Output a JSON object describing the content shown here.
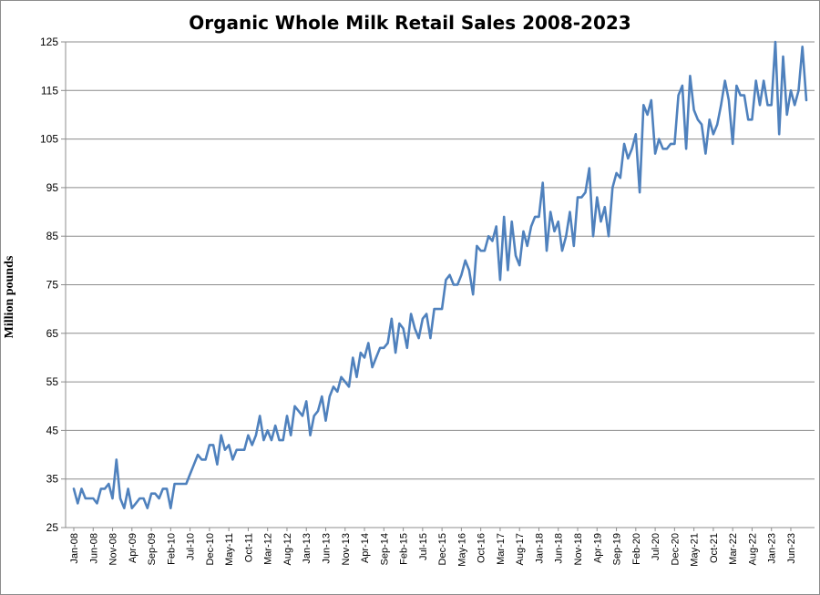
{
  "chart_data": {
    "type": "line",
    "title": "Organic Whole Milk Retail Sales 2008-2023",
    "xlabel": "",
    "ylabel": "Million pounds",
    "ylim": [
      25,
      125
    ],
    "y_ticks": [
      "25",
      "35",
      "45",
      "55",
      "65",
      "75",
      "85",
      "95",
      "105",
      "115",
      "125"
    ],
    "x_tick_labels": [
      "Jan-08",
      "Jun-08",
      "Nov-08",
      "Apr-09",
      "Sep-09",
      "Feb-10",
      "Jul-10",
      "Dec-10",
      "May-11",
      "Oct-11",
      "Mar-12",
      "Aug-12",
      "Jan-13",
      "Jun-13",
      "Nov-13",
      "Apr-14",
      "Sep-14",
      "Feb-15",
      "Jul-15",
      "Dec-15",
      "May-16",
      "Oct-16",
      "Mar-17",
      "Aug-17",
      "Jan-18",
      "Jun-18",
      "Nov-18",
      "Apr-19",
      "Sep-19",
      "Feb-20",
      "Jul-20",
      "Dec-20",
      "May-21",
      "Oct-21",
      "Mar-22",
      "Aug-22",
      "Jan-23",
      "Jun-23"
    ],
    "grid": true,
    "legend": "none",
    "color": "#4f81bd",
    "series": [
      {
        "values": [
          33,
          30,
          33,
          31,
          31,
          31,
          30,
          33,
          33,
          34,
          31,
          39,
          31,
          29,
          33,
          29,
          30,
          31,
          31,
          29,
          32,
          32,
          31,
          33,
          33,
          29,
          34,
          34,
          34,
          34,
          36,
          38,
          40,
          39,
          39,
          42,
          42,
          38,
          44,
          41,
          42,
          39,
          41,
          41,
          41,
          44,
          42,
          44,
          48,
          43,
          45,
          43,
          46,
          43,
          43,
          48,
          44,
          50,
          49,
          48,
          51,
          44,
          48,
          49,
          52,
          47,
          52,
          54,
          53,
          56,
          55,
          54,
          60,
          56,
          61,
          60,
          63,
          58,
          60,
          62,
          62,
          63,
          68,
          61,
          67,
          66,
          62,
          69,
          66,
          64,
          68,
          69,
          64,
          70,
          70,
          70,
          76,
          77,
          75,
          75,
          77,
          80,
          78,
          73,
          83,
          82,
          82,
          85,
          84,
          87,
          76,
          89,
          78,
          88,
          81,
          79,
          86,
          83,
          87,
          89,
          89,
          96,
          82,
          90,
          86,
          88,
          82,
          85,
          90,
          83,
          93,
          93,
          94,
          99,
          85,
          93,
          88,
          91,
          85,
          95,
          98,
          97,
          104,
          101,
          103,
          106,
          94,
          112,
          110,
          113,
          102,
          105,
          103,
          103,
          104,
          104,
          114,
          116,
          103,
          118,
          111,
          109,
          108,
          102,
          109,
          106,
          108,
          112,
          117,
          113,
          104,
          116,
          114,
          114,
          109,
          109,
          117,
          112,
          117,
          112,
          112,
          125,
          106,
          122,
          110,
          115,
          112,
          115,
          124,
          113
        ]
      }
    ]
  }
}
